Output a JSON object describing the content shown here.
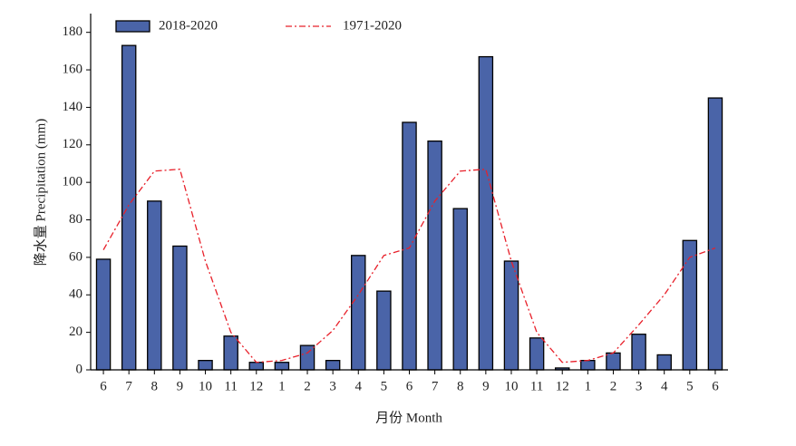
{
  "chart_data": {
    "type": "bar",
    "categories": [
      "6",
      "7",
      "8",
      "9",
      "10",
      "11",
      "12",
      "1",
      "2",
      "3",
      "4",
      "5",
      "6",
      "7",
      "8",
      "9",
      "10",
      "11",
      "12",
      "1",
      "2",
      "3",
      "4",
      "5",
      "6"
    ],
    "series": [
      {
        "name": "2018-2020",
        "type": "bar",
        "color": "#4a64a8",
        "values": [
          59,
          173,
          90,
          66,
          5,
          18,
          4,
          4,
          13,
          5,
          61,
          42,
          132,
          122,
          86,
          167,
          58,
          17,
          1,
          5,
          9,
          19,
          8,
          69,
          145
        ]
      },
      {
        "name": "1971-2020",
        "type": "line",
        "color": "#e8202a",
        "values": [
          64,
          88,
          106,
          107,
          58,
          20,
          4,
          5,
          9,
          21,
          40,
          61,
          65,
          90,
          106,
          107,
          58,
          20,
          4,
          5,
          9,
          24,
          40,
          60,
          65
        ]
      }
    ],
    "ylim": [
      0,
      190
    ],
    "yticks": [
      0,
      20,
      40,
      60,
      80,
      100,
      120,
      140,
      160,
      180
    ],
    "ylabel": "降水量 Precipitation (mm)",
    "xlabel": "月份 Month",
    "legend": "top-left"
  }
}
